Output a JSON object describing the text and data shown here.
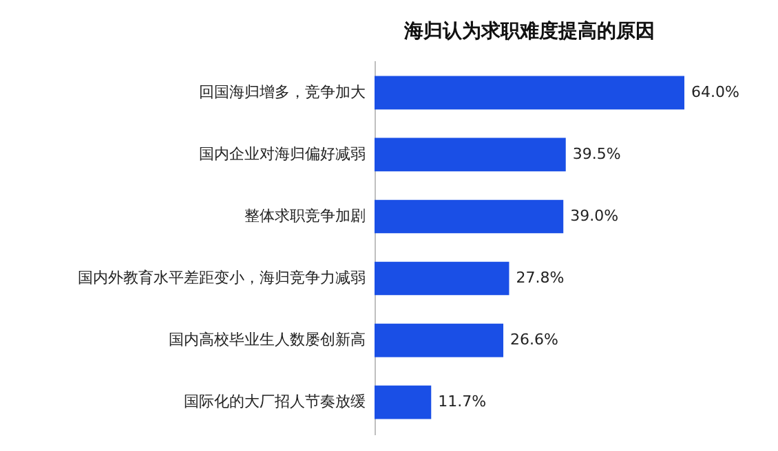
{
  "chart_data": {
    "type": "bar",
    "orientation": "horizontal",
    "title": "海归认为求职难度提高的原因",
    "categories": [
      "回国海归增多，竞争加大",
      "国内企业对海归偏好减弱",
      "整体求职竞争加剧",
      "国内外教育水平差距变小，海归竞争力减弱",
      "国内高校毕业生人数屡创新高",
      "国际化的大厂招人节奏放缓"
    ],
    "values": [
      64.0,
      39.5,
      39.0,
      27.8,
      26.6,
      11.7
    ],
    "value_labels": [
      "64.0%",
      "39.5%",
      "39.0%",
      "27.8%",
      "26.6%",
      "11.7%"
    ],
    "color": "#1a4fe6"
  }
}
